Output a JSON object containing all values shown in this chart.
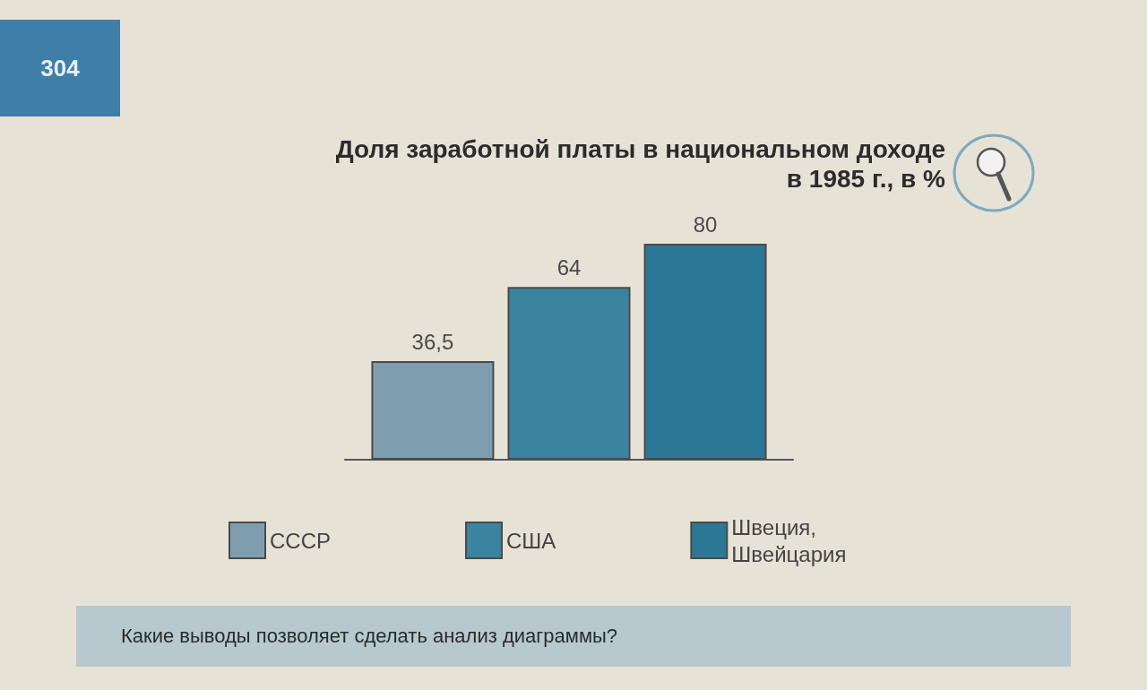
{
  "chart_data": {
    "type": "bar",
    "title": "Доля заработной платы в национальном доходе в 1985 г., в %",
    "categories": [
      null
    ],
    "series": [
      {
        "name": "СССР",
        "color": "#7e9eb0",
        "values": [
          36.5
        ],
        "value_labels": [
          "36,5"
        ]
      },
      {
        "name": "США",
        "color": "#3a84a0",
        "values": [
          64
        ],
        "value_labels": [
          "64"
        ]
      },
      {
        "name": "Швеция, Швейцария",
        "color": "#2b7896",
        "values": [
          80
        ],
        "value_labels": [
          "80"
        ]
      }
    ],
    "legend": "bottom",
    "tick_labels": false,
    "annotations": [
      "304",
      "Какие выводы позволяет сделать анализ диаграммы?"
    ]
  }
}
